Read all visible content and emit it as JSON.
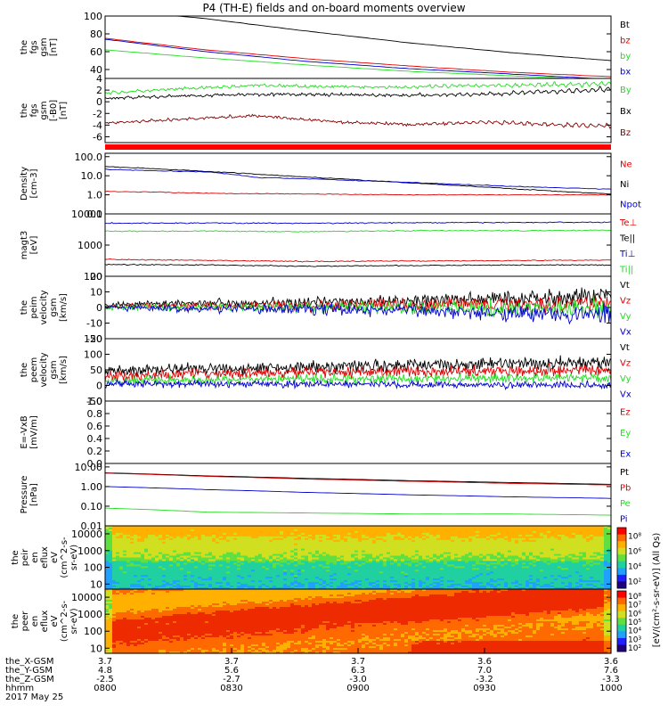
{
  "title": "P4 (TH-E) fields and on-board moments overview",
  "colors": {
    "black": "#000000",
    "red": "#dd0000",
    "green": "#22dd22",
    "blue": "#0000cc",
    "darkred": "#880000",
    "redbar": "#ff0000"
  },
  "chart_data": [
    {
      "id": "fgs",
      "type": "line",
      "ylabel": [
        "the",
        "fgs",
        "gsm",
        "[nT]"
      ],
      "ylim": [
        30,
        100
      ],
      "ticks": [
        "100",
        "80",
        "60",
        "40"
      ],
      "tick_values": [
        100,
        80,
        60,
        40
      ],
      "x": [
        0,
        0.2,
        0.4,
        0.6,
        0.8,
        1
      ],
      "series": [
        {
          "name": "Bt",
          "color": "black",
          "values": [
            108,
            97,
            83,
            70,
            59,
            50
          ]
        },
        {
          "name": "bz",
          "color": "red",
          "values": [
            75,
            62,
            52,
            44,
            37,
            32
          ]
        },
        {
          "name": "by",
          "color": "green",
          "values": [
            62,
            53,
            45,
            38,
            33,
            28
          ]
        },
        {
          "name": "bx",
          "color": "blue",
          "values": [
            74,
            60,
            49,
            41,
            35,
            29
          ]
        }
      ]
    },
    {
      "id": "fgs_dsl",
      "type": "line",
      "ylabel": [
        "the",
        "fgs",
        "gsm",
        "[-B0]",
        "[nT]"
      ],
      "ylim": [
        -7,
        4
      ],
      "ticks": [
        "4",
        "2",
        "0",
        "-2",
        "-4",
        "-6"
      ],
      "tick_values": [
        4,
        2,
        0,
        -2,
        -4,
        -6
      ],
      "x": [
        0,
        0.15,
        0.3,
        0.45,
        0.6,
        0.75,
        0.9,
        1
      ],
      "series": [
        {
          "name": "By",
          "color": "green",
          "values": [
            1.5,
            2.2,
            2.8,
            2.6,
            2.5,
            2.8,
            2.9,
            3.1
          ]
        },
        {
          "name": "Bx",
          "color": "black",
          "values": [
            0.6,
            1.0,
            1.3,
            1.2,
            1.1,
            1.3,
            1.8,
            2.2
          ]
        },
        {
          "name": "Bz",
          "color": "darkred",
          "values": [
            -3.7,
            -3.0,
            -2.4,
            -3.4,
            -3.9,
            -3.5,
            -4.0,
            -4.1
          ]
        }
      ]
    },
    {
      "id": "density",
      "type": "line",
      "scale": "log",
      "ylabel": [
        "Density",
        "[cm-3]"
      ],
      "ylim": [
        0.1,
        150
      ],
      "ticks": [
        "100.0",
        "10.0",
        "1.0",
        "0.1"
      ],
      "tick_values": [
        100,
        10,
        1,
        0.1
      ],
      "x": [
        0,
        0.1,
        0.2,
        0.3,
        0.4,
        0.5,
        0.6,
        0.7,
        0.8,
        0.9,
        1
      ],
      "series": [
        {
          "name": "Ne",
          "color": "red",
          "values": [
            1.5,
            1.4,
            1.2,
            1.15,
            1.1,
            1.05,
            1.0,
            1.0,
            1.0,
            1.0,
            1.0
          ]
        },
        {
          "name": "Ni",
          "color": "black",
          "values": [
            30,
            23,
            17,
            12,
            8.5,
            6,
            4.2,
            3.0,
            2.1,
            1.5,
            1.1
          ]
        },
        {
          "name": "Npot",
          "color": "blue",
          "values": [
            22,
            18,
            16,
            8,
            7,
            5.5,
            4.5,
            3.5,
            2.8,
            2.3,
            2.0
          ]
        }
      ]
    },
    {
      "id": "temp",
      "type": "line",
      "scale": "log",
      "ylabel": [
        "magt3",
        "[eV]"
      ],
      "ylim": [
        100,
        10000
      ],
      "ticks": [
        "10000",
        "1000",
        "100"
      ],
      "tick_values": [
        10000,
        1000,
        100
      ],
      "x": [
        0,
        0.2,
        0.4,
        0.6,
        0.8,
        1
      ],
      "series": [
        {
          "name": "Te⊥",
          "color": "red",
          "values": [
            350,
            320,
            300,
            310,
            320,
            330
          ]
        },
        {
          "name": "Te||",
          "color": "black",
          "values": [
            240,
            230,
            210,
            220,
            230,
            230
          ]
        },
        {
          "name": "Ti⊥",
          "color": "blue",
          "values": [
            5000,
            5100,
            5000,
            5200,
            5300,
            5400
          ]
        },
        {
          "name": "Ti||",
          "color": "green",
          "values": [
            2800,
            2800,
            2700,
            2900,
            2900,
            3000
          ]
        }
      ]
    },
    {
      "id": "peim_v",
      "type": "line",
      "ylabel": [
        "the",
        "peim",
        "velocity",
        "gsm",
        "[km/s]"
      ],
      "ylim": [
        -20,
        20
      ],
      "ticks": [
        "20",
        "10",
        "0",
        "-10",
        "-20"
      ],
      "tick_values": [
        20,
        10,
        0,
        -10,
        -20
      ],
      "x": [
        0,
        0.2,
        0.4,
        0.6,
        0.8,
        1
      ],
      "series": [
        {
          "name": "Vt",
          "color": "black",
          "values": [
            2,
            3,
            3,
            4,
            6,
            8
          ]
        },
        {
          "name": "Vz",
          "color": "red",
          "values": [
            1,
            1,
            1,
            2,
            2,
            3
          ]
        },
        {
          "name": "Vy",
          "color": "green",
          "values": [
            0,
            0,
            0,
            0,
            -1,
            -1
          ]
        },
        {
          "name": "Vx",
          "color": "blue",
          "values": [
            0,
            -1,
            -1,
            -2,
            -3,
            -5
          ]
        }
      ]
    },
    {
      "id": "peem_v",
      "type": "line",
      "ylabel": [
        "the",
        "peem",
        "velocity",
        "gsm",
        "[km/s]"
      ],
      "ylim": [
        -50,
        150
      ],
      "ticks": [
        "150",
        "100",
        "50",
        "0",
        "-50"
      ],
      "tick_values": [
        150,
        100,
        50,
        0,
        -50
      ],
      "x": [
        0,
        0.2,
        0.4,
        0.6,
        0.8,
        1
      ],
      "series": [
        {
          "name": "Vt",
          "color": "black",
          "values": [
            45,
            55,
            60,
            65,
            70,
            72
          ]
        },
        {
          "name": "Vz",
          "color": "red",
          "values": [
            30,
            38,
            42,
            45,
            48,
            50
          ]
        },
        {
          "name": "Vy",
          "color": "green",
          "values": [
            15,
            18,
            20,
            22,
            24,
            25
          ]
        },
        {
          "name": "Vx",
          "color": "blue",
          "values": [
            5,
            5,
            4,
            3,
            2,
            2
          ]
        }
      ]
    },
    {
      "id": "efield",
      "type": "line",
      "ylabel": [
        "E=-VxB",
        "[mV/m]"
      ],
      "ylim": [
        0,
        1.0
      ],
      "ticks": [
        "1.0",
        "0.8",
        "0.6",
        "0.4",
        "0.2",
        "0.0"
      ],
      "tick_values": [
        1.0,
        0.8,
        0.6,
        0.4,
        0.2,
        0.0
      ],
      "series": [
        {
          "name": "Ez",
          "color": "red",
          "values": []
        },
        {
          "name": "Ey",
          "color": "green",
          "values": []
        },
        {
          "name": "Ex",
          "color": "blue",
          "values": []
        }
      ]
    },
    {
      "id": "pressure",
      "type": "line",
      "scale": "log",
      "ylabel": [
        "Pressure",
        "[nPa]"
      ],
      "ylim": [
        0.01,
        15
      ],
      "ticks": [
        "10.00",
        "1.00",
        "0.10",
        "0.01"
      ],
      "tick_values": [
        10,
        1,
        0.1,
        0.01
      ],
      "x": [
        0,
        0.2,
        0.4,
        0.6,
        0.8,
        1
      ],
      "series": [
        {
          "name": "Pt",
          "color": "black",
          "values": [
            5.0,
            3.5,
            2.6,
            2.0,
            1.6,
            1.3
          ]
        },
        {
          "name": "Pb",
          "color": "red",
          "values": [
            4.8,
            3.3,
            2.4,
            1.85,
            1.45,
            1.2
          ]
        },
        {
          "name": "Pe",
          "color": "green",
          "values": [
            0.08,
            0.05,
            0.045,
            0.04,
            0.04,
            0.035
          ]
        },
        {
          "name": "Pi",
          "color": "blue",
          "values": [
            1.0,
            0.7,
            0.5,
            0.38,
            0.3,
            0.25
          ]
        }
      ]
    },
    {
      "id": "peir",
      "type": "heatmap",
      "ylabel": [
        "the",
        "peir",
        "en",
        "eflux",
        "eV",
        "(cm^2-s-",
        "sr-eV)"
      ],
      "ticks": [
        "10000",
        "1000",
        "100",
        "10"
      ],
      "tick_values": [
        10000,
        1000,
        100,
        10
      ],
      "ylim": [
        5,
        30000
      ],
      "scale": "log",
      "colorbar_ticks": [
        "10⁸",
        "10⁶",
        "10⁴",
        "10²"
      ]
    },
    {
      "id": "peer",
      "type": "heatmap",
      "ylabel": [
        "the",
        "peer",
        "en",
        "eflux",
        "eV",
        "(cm^2-s-",
        "sr-eV)"
      ],
      "ticks": [
        "10000",
        "1000",
        "100",
        "10"
      ],
      "tick_values": [
        10000,
        1000,
        100,
        10
      ],
      "ylim": [
        5,
        30000
      ],
      "scale": "log",
      "colorbar_ticks": [
        "10⁸",
        "10⁷",
        "10⁶",
        "10⁵",
        "10⁴",
        "10³",
        "10²"
      ]
    }
  ],
  "colorbar_label": "[eV/(cm²-s-sr-eV)] (All Qs)",
  "xaxis": {
    "row_labels": [
      "the_X-GSM",
      "the_Y-GSM",
      "the_Z-GSM",
      "hhmm",
      "2017 May 25"
    ],
    "ticks": [
      {
        "t": 0.0,
        "vals": [
          "3.7",
          "4.8",
          "-2.5",
          "0800"
        ]
      },
      {
        "t": 0.25,
        "vals": [
          "3.7",
          "5.6",
          "-2.7",
          "0830"
        ]
      },
      {
        "t": 0.5,
        "vals": [
          "3.7",
          "6.3",
          "-3.0",
          "0900"
        ]
      },
      {
        "t": 0.75,
        "vals": [
          "3.6",
          "7.0",
          "-3.2",
          "0930"
        ]
      },
      {
        "t": 1.0,
        "vals": [
          "3.6",
          "7.6",
          "-3.3",
          "1000"
        ]
      }
    ]
  }
}
